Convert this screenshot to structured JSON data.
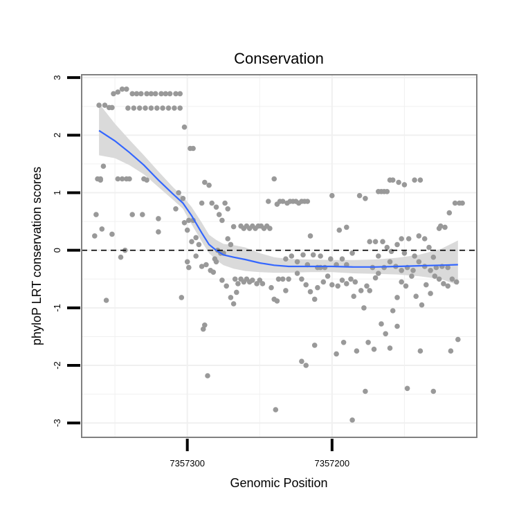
{
  "chart_data": {
    "type": "scatter",
    "title": "Conservation",
    "xlabel": "Genomic Position",
    "ylabel": "phyloP LRT conservation scores",
    "xlim": [
      7357373,
      7357100
    ],
    "ylim": [
      -3.25,
      3.05
    ],
    "x_reversed": true,
    "x_ticks": [
      {
        "value": 7357300,
        "label": "7357300"
      },
      {
        "value": 7357200,
        "label": "7357200"
      }
    ],
    "y_ticks": [
      {
        "value": 3,
        "label": "3"
      },
      {
        "value": 2,
        "label": "2"
      },
      {
        "value": 1,
        "label": "1"
      },
      {
        "value": 0,
        "label": "0"
      },
      {
        "value": -1,
        "label": "-1"
      },
      {
        "value": -2,
        "label": "-2"
      },
      {
        "value": -3,
        "label": "-3"
      }
    ],
    "grid": true,
    "reference_line": {
      "y": 0,
      "style": "dashed",
      "color": "#000000"
    },
    "colors": {
      "points": "#999999",
      "smooth_line": "#3366FF",
      "confidence_band": "#D6D6D6",
      "grid": "#F0F0F0",
      "panel_border": "#808080"
    },
    "smooth": {
      "x": [
        7357361,
        7357350,
        7357340,
        7357330,
        7357320,
        7357310,
        7357303,
        7357297,
        7357290,
        7357285,
        7357280,
        7357275,
        7357268,
        7357260,
        7357250,
        7357240,
        7357230,
        7357215,
        7357200,
        7357185,
        7357170,
        7357155,
        7357140,
        7357125,
        7357113
      ],
      "y": [
        2.08,
        1.9,
        1.7,
        1.48,
        1.22,
        0.98,
        0.82,
        0.6,
        0.3,
        0.1,
        0.0,
        -0.08,
        -0.12,
        -0.16,
        -0.22,
        -0.26,
        -0.28,
        -0.28,
        -0.28,
        -0.29,
        -0.29,
        -0.28,
        -0.27,
        -0.26,
        -0.25
      ],
      "lower": [
        1.65,
        1.6,
        1.48,
        1.32,
        1.1,
        0.88,
        0.72,
        0.45,
        0.15,
        -0.05,
        -0.17,
        -0.26,
        -0.32,
        -0.36,
        -0.38,
        -0.39,
        -0.39,
        -0.38,
        -0.38,
        -0.4,
        -0.41,
        -0.42,
        -0.45,
        -0.5,
        -0.6
      ],
      "upper": [
        2.55,
        2.2,
        1.92,
        1.65,
        1.37,
        1.1,
        0.93,
        0.75,
        0.48,
        0.27,
        0.18,
        0.11,
        0.09,
        0.05,
        -0.05,
        -0.12,
        -0.15,
        -0.16,
        -0.17,
        -0.17,
        -0.16,
        -0.13,
        -0.08,
        0.02,
        0.17
      ]
    },
    "points": [
      [
        7357361,
        2.52
      ],
      [
        7357357,
        2.52
      ],
      [
        7357354,
        2.48
      ],
      [
        7357352,
        2.48
      ],
      [
        7357351,
        2.72
      ],
      [
        7357348,
        2.75
      ],
      [
        7357345,
        2.8
      ],
      [
        7357342,
        2.8
      ],
      [
        7357338,
        2.72
      ],
      [
        7357335,
        2.72
      ],
      [
        7357332,
        2.72
      ],
      [
        7357328,
        2.72
      ],
      [
        7357325,
        2.72
      ],
      [
        7357322,
        2.72
      ],
      [
        7357318,
        2.72
      ],
      [
        7357315,
        2.72
      ],
      [
        7357312,
        2.72
      ],
      [
        7357308,
        2.72
      ],
      [
        7357305,
        2.72
      ],
      [
        7357341,
        2.47
      ],
      [
        7357337,
        2.47
      ],
      [
        7357333,
        2.47
      ],
      [
        7357329,
        2.47
      ],
      [
        7357325,
        2.47
      ],
      [
        7357321,
        2.47
      ],
      [
        7357317,
        2.47
      ],
      [
        7357313,
        2.47
      ],
      [
        7357309,
        2.47
      ],
      [
        7357305,
        2.47
      ],
      [
        7357362,
        1.24
      ],
      [
        7357360,
        1.24
      ],
      [
        7357358,
        1.46
      ],
      [
        7357360,
        1.22
      ],
      [
        7357345,
        1.24
      ],
      [
        7357342,
        1.24
      ],
      [
        7357340,
        1.24
      ],
      [
        7357348,
        1.24
      ],
      [
        7357330,
        1.24
      ],
      [
        7357328,
        1.22
      ],
      [
        7357302,
        2.14
      ],
      [
        7357298,
        1.77
      ],
      [
        7357296,
        1.77
      ],
      [
        7357363,
        0.62
      ],
      [
        7357359,
        0.37
      ],
      [
        7357364,
        0.25
      ],
      [
        7357356,
        -0.87
      ],
      [
        7357352,
        0.28
      ],
      [
        7357346,
        -0.12
      ],
      [
        7357343,
        0.0
      ],
      [
        7357338,
        0.62
      ],
      [
        7357331,
        0.62
      ],
      [
        7357320,
        0.55
      ],
      [
        7357320,
        0.32
      ],
      [
        7357308,
        0.72
      ],
      [
        7357306,
        1.0
      ],
      [
        7357303,
        0.9
      ],
      [
        7357302,
        0.48
      ],
      [
        7357299,
        0.52
      ],
      [
        7357296,
        0.52
      ],
      [
        7357304,
        -0.82
      ],
      [
        7357300,
        0.35
      ],
      [
        7357297,
        0.15
      ],
      [
        7357294,
        0.22
      ],
      [
        7357292,
        0.1
      ],
      [
        7357290,
        0.82
      ],
      [
        7357288,
        1.18
      ],
      [
        7357285,
        1.13
      ],
      [
        7357283,
        0.82
      ],
      [
        7357280,
        0.75
      ],
      [
        7357278,
        0.62
      ],
      [
        7357276,
        0.52
      ],
      [
        7357274,
        0.82
      ],
      [
        7357272,
        0.72
      ],
      [
        7357300,
        -0.2
      ],
      [
        7357299,
        -0.3
      ],
      [
        7357294,
        -0.1
      ],
      [
        7357290,
        -0.28
      ],
      [
        7357287,
        -0.25
      ],
      [
        7357284,
        -0.35
      ],
      [
        7357282,
        -0.38
      ],
      [
        7357280,
        -0.2
      ],
      [
        7357276,
        -0.52
      ],
      [
        7357273,
        -0.62
      ],
      [
        7357270,
        -0.82
      ],
      [
        7357268,
        -0.93
      ],
      [
        7357266,
        -0.73
      ],
      [
        7357289,
        -1.37
      ],
      [
        7357288,
        -1.3
      ],
      [
        7357286,
        -2.18
      ],
      [
        7357275,
        -0.05
      ],
      [
        7357279,
        0.0
      ],
      [
        7357281,
        -0.15
      ],
      [
        7357277,
        -0.05
      ],
      [
        7357272,
        0.2
      ],
      [
        7357270,
        0.1
      ],
      [
        7357268,
        0.41
      ],
      [
        7357263,
        0.42
      ],
      [
        7357261,
        0.38
      ],
      [
        7357259,
        0.42
      ],
      [
        7357257,
        0.38
      ],
      [
        7357255,
        0.42
      ],
      [
        7357253,
        0.38
      ],
      [
        7357251,
        0.42
      ],
      [
        7357249,
        0.42
      ],
      [
        7357247,
        0.38
      ],
      [
        7357245,
        0.42
      ],
      [
        7357243,
        0.38
      ],
      [
        7357267,
        -0.5
      ],
      [
        7357265,
        -0.58
      ],
      [
        7357263,
        -0.5
      ],
      [
        7357261,
        -0.55
      ],
      [
        7357259,
        -0.5
      ],
      [
        7357257,
        -0.55
      ],
      [
        7357255,
        -0.52
      ],
      [
        7357252,
        -0.58
      ],
      [
        7357250,
        -0.52
      ],
      [
        7357248,
        -0.58
      ],
      [
        7357244,
        0.85
      ],
      [
        7357240,
        1.24
      ],
      [
        7357238,
        0.8
      ],
      [
        7357236,
        0.85
      ],
      [
        7357234,
        0.85
      ],
      [
        7357231,
        0.82
      ],
      [
        7357229,
        0.85
      ],
      [
        7357227,
        0.85
      ],
      [
        7357225,
        0.85
      ],
      [
        7357223,
        0.82
      ],
      [
        7357221,
        0.85
      ],
      [
        7357219,
        0.85
      ],
      [
        7357217,
        0.85
      ],
      [
        7357242,
        -0.65
      ],
      [
        7357240,
        -0.85
      ],
      [
        7357238,
        -0.88
      ],
      [
        7357237,
        -0.5
      ],
      [
        7357234,
        -0.5
      ],
      [
        7357232,
        -0.7
      ],
      [
        7357230,
        -0.5
      ],
      [
        7357224,
        -0.4
      ],
      [
        7357221,
        -0.5
      ],
      [
        7357218,
        -0.6
      ],
      [
        7357215,
        -0.72
      ],
      [
        7357212,
        -0.85
      ],
      [
        7357210,
        -0.65
      ],
      [
        7357206,
        -0.55
      ],
      [
        7357203,
        -0.45
      ],
      [
        7357200,
        -0.6
      ],
      [
        7357196,
        -0.62
      ],
      [
        7357193,
        -0.52
      ],
      [
        7357190,
        -0.58
      ],
      [
        7357187,
        -0.5
      ],
      [
        7357184,
        -0.55
      ],
      [
        7357239,
        -2.77
      ],
      [
        7357221,
        -1.93
      ],
      [
        7357218,
        -2.0
      ],
      [
        7357212,
        -1.65
      ],
      [
        7357197,
        -1.8
      ],
      [
        7357192,
        -1.6
      ],
      [
        7357186,
        -2.95
      ],
      [
        7357183,
        -1.75
      ],
      [
        7357177,
        -2.45
      ],
      [
        7357175,
        -1.6
      ],
      [
        7357171,
        -1.72
      ],
      [
        7357155,
        -1.32
      ],
      [
        7357148,
        -2.4
      ],
      [
        7357139,
        -1.75
      ],
      [
        7357130,
        -2.45
      ],
      [
        7357118,
        -1.75
      ],
      [
        7357113,
        -1.55
      ],
      [
        7357232,
        -0.15
      ],
      [
        7357228,
        -0.1
      ],
      [
        7357224,
        -0.2
      ],
      [
        7357220,
        -0.08
      ],
      [
        7357217,
        -0.25
      ],
      [
        7357213,
        -0.08
      ],
      [
        7357210,
        -0.3
      ],
      [
        7357208,
        -0.1
      ],
      [
        7357205,
        -0.3
      ],
      [
        7357201,
        -0.15
      ],
      [
        7357197,
        -0.25
      ],
      [
        7357193,
        -0.15
      ],
      [
        7357190,
        -0.25
      ],
      [
        7357215,
        0.25
      ],
      [
        7357208,
        -0.3
      ],
      [
        7357200,
        0.95
      ],
      [
        7357195,
        0.35
      ],
      [
        7357190,
        0.4
      ],
      [
        7357186,
        -0.05
      ],
      [
        7357181,
        0.95
      ],
      [
        7357177,
        0.9
      ],
      [
        7357174,
        0.15
      ],
      [
        7357170,
        0.15
      ],
      [
        7357168,
        -0.1
      ],
      [
        7357165,
        0.15
      ],
      [
        7357162,
        0.05
      ],
      [
        7357159,
        -0.02
      ],
      [
        7357155,
        0.1
      ],
      [
        7357152,
        0.2
      ],
      [
        7357150,
        -0.05
      ],
      [
        7357147,
        0.2
      ],
      [
        7357143,
        -0.1
      ],
      [
        7357140,
        0.25
      ],
      [
        7357136,
        0.2
      ],
      [
        7357133,
        0.05
      ],
      [
        7357130,
        -0.12
      ],
      [
        7357126,
        0.38
      ],
      [
        7357122,
        0.4
      ],
      [
        7357119,
        0.65
      ],
      [
        7357115,
        0.82
      ],
      [
        7357112,
        0.82
      ],
      [
        7357110,
        0.82
      ],
      [
        7357178,
        -1.0
      ],
      [
        7357174,
        -0.7
      ],
      [
        7357170,
        -0.48
      ],
      [
        7357166,
        -1.28
      ],
      [
        7357163,
        -1.45
      ],
      [
        7357160,
        -1.7
      ],
      [
        7357158,
        -1.05
      ],
      [
        7357155,
        -0.82
      ],
      [
        7357152,
        -0.55
      ],
      [
        7357149,
        -0.62
      ],
      [
        7357145,
        -0.45
      ],
      [
        7357142,
        -0.8
      ],
      [
        7357138,
        -0.95
      ],
      [
        7357135,
        -0.6
      ],
      [
        7357132,
        -0.75
      ],
      [
        7357129,
        -0.45
      ],
      [
        7357126,
        -0.5
      ],
      [
        7357123,
        -0.58
      ],
      [
        7357120,
        -0.62
      ],
      [
        7357117,
        -0.5
      ],
      [
        7357114,
        -0.55
      ],
      [
        7357168,
        1.02
      ],
      [
        7357166,
        1.02
      ],
      [
        7357164,
        1.02
      ],
      [
        7357162,
        1.02
      ],
      [
        7357160,
        1.22
      ],
      [
        7357158,
        1.22
      ],
      [
        7357154,
        1.18
      ],
      [
        7357150,
        1.14
      ],
      [
        7357143,
        1.22
      ],
      [
        7357139,
        1.22
      ],
      [
        7357125,
        0.42
      ],
      [
        7357185,
        -0.8
      ],
      [
        7357180,
        -0.7
      ],
      [
        7357176,
        -0.62
      ],
      [
        7357172,
        -0.3
      ],
      [
        7357168,
        -0.4
      ],
      [
        7357164,
        -0.3
      ],
      [
        7357160,
        -0.2
      ],
      [
        7357156,
        -0.28
      ],
      [
        7357152,
        -0.35
      ],
      [
        7357148,
        -0.3
      ],
      [
        7357144,
        -0.35
      ],
      [
        7357140,
        -0.2
      ],
      [
        7357136,
        -0.28
      ],
      [
        7357132,
        -0.35
      ],
      [
        7357128,
        -0.3
      ],
      [
        7357124,
        -0.28
      ],
      [
        7357120,
        -0.3
      ]
    ]
  }
}
